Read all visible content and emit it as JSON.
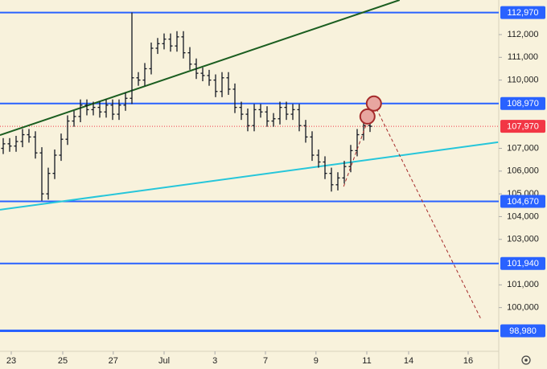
{
  "chart_data": {
    "type": "ohlc",
    "x": [
      0,
      1,
      2,
      3,
      4,
      5,
      6,
      7,
      8,
      9,
      10,
      11,
      12,
      13,
      14,
      15,
      16,
      17,
      18,
      19,
      20,
      21,
      22,
      23,
      24,
      25,
      26,
      27,
      28,
      29,
      30,
      31,
      32,
      33,
      34,
      35,
      36,
      37,
      38,
      39,
      40,
      41,
      42,
      43,
      44,
      45,
      46,
      47,
      48,
      49,
      50,
      51,
      52,
      53,
      54,
      55,
      56,
      57
    ],
    "open": [
      107000,
      107200,
      107100,
      107300,
      107600,
      107500,
      106800,
      105000,
      105900,
      106700,
      107400,
      108200,
      108400,
      108900,
      108700,
      108800,
      108600,
      108900,
      108500,
      108900,
      109200,
      110100,
      110000,
      110500,
      111400,
      111600,
      111800,
      111500,
      111900,
      111200,
      110700,
      110300,
      110200,
      110000,
      109500,
      110100,
      109600,
      108800,
      108500,
      108000,
      108700,
      108600,
      108200,
      108300,
      108800,
      108500,
      108700,
      108000,
      107500,
      106700,
      106400,
      105900,
      105400,
      105700,
      106200,
      106900,
      107600,
      108000
    ],
    "high": [
      107450,
      107450,
      107550,
      107850,
      107850,
      107750,
      107050,
      106150,
      106950,
      107650,
      108450,
      108650,
      109150,
      109150,
      109050,
      109050,
      109150,
      109150,
      109150,
      109450,
      112970,
      110350,
      110750,
      111650,
      111850,
      112050,
      112050,
      112150,
      112150,
      111450,
      110950,
      110550,
      110450,
      110250,
      110350,
      110350,
      109850,
      109050,
      108750,
      108950,
      108950,
      108850,
      108550,
      109050,
      109050,
      108950,
      108950,
      108250,
      107750,
      106950,
      106650,
      106150,
      105950,
      106450,
      107150,
      107850,
      108250,
      108250
    ],
    "low": [
      106750,
      106850,
      106850,
      107050,
      107250,
      106550,
      104700,
      104750,
      105650,
      106450,
      107150,
      107950,
      108150,
      108450,
      108450,
      108350,
      108350,
      108250,
      108250,
      108650,
      108950,
      109750,
      109750,
      110250,
      111150,
      111350,
      111250,
      111250,
      110950,
      110450,
      110050,
      109950,
      109750,
      109250,
      109250,
      109350,
      108550,
      108250,
      107750,
      107750,
      108350,
      107950,
      107950,
      108050,
      108250,
      108250,
      107750,
      107250,
      106450,
      106150,
      105650,
      105100,
      105150,
      105450,
      105950,
      106650,
      107350,
      107720
    ],
    "close": [
      107200,
      107100,
      107300,
      107600,
      107500,
      106800,
      105000,
      105900,
      106700,
      107400,
      108200,
      108400,
      108900,
      108700,
      108800,
      108600,
      108900,
      108500,
      108900,
      109200,
      110100,
      110000,
      110500,
      111400,
      111600,
      111800,
      111500,
      111900,
      111200,
      110700,
      110300,
      110200,
      110000,
      109500,
      110100,
      109600,
      108800,
      108500,
      108000,
      108700,
      108600,
      108200,
      108300,
      108800,
      108500,
      108700,
      108000,
      107500,
      106700,
      106400,
      105900,
      105400,
      105700,
      106200,
      106900,
      107600,
      108000,
      107970
    ],
    "color": "#131722",
    "xlim": [
      0,
      77.5
    ],
    "xticks": [
      {
        "value": 1.75,
        "label": "23"
      },
      {
        "value": 9.75,
        "label": "25"
      },
      {
        "value": 17.6,
        "label": "27"
      },
      {
        "value": 25.5,
        "label": "Jul"
      },
      {
        "value": 33.4,
        "label": "3"
      },
      {
        "value": 41.25,
        "label": "7"
      },
      {
        "value": 49.1,
        "label": "9"
      },
      {
        "value": 57,
        "label": "11"
      },
      {
        "value": 63.5,
        "label": "14"
      },
      {
        "value": 72.75,
        "label": "16"
      }
    ],
    "ylim": [
      98150,
      113520
    ],
    "yticks": [
      {
        "value": 100000,
        "label": "100,000"
      },
      {
        "value": 101000,
        "label": "101,000"
      },
      {
        "value": 103000,
        "label": "103,000"
      },
      {
        "value": 104000,
        "label": "104,000"
      },
      {
        "value": 105000,
        "label": "105,000"
      },
      {
        "value": 106000,
        "label": "106,000"
      },
      {
        "value": 107000,
        "label": "107,000"
      },
      {
        "value": 110000,
        "label": "110,000"
      },
      {
        "value": 111000,
        "label": "111,000"
      },
      {
        "value": 112000,
        "label": "112,000"
      }
    ],
    "levels": [
      {
        "value": 112970,
        "label": "112,970"
      },
      {
        "value": 108970,
        "label": "108,970"
      },
      {
        "value": 104670,
        "label": "104,670"
      },
      {
        "value": 101940,
        "label": "101,940"
      },
      {
        "value": 98980,
        "label": "98,980"
      }
    ],
    "level_color": "#2962ff",
    "last_price": {
      "value": 107970,
      "label": "107,970"
    },
    "last_price_color": "#f23645",
    "trendlines": [
      {
        "color": "#1b5e20",
        "points": [
          [
            0,
            107580
          ],
          [
            62.1,
            113520
          ]
        ]
      },
      {
        "color": "#26c6da",
        "points": [
          [
            0,
            104300
          ],
          [
            77.4,
            107270
          ]
        ]
      }
    ],
    "projection": {
      "color": "#a52a2a",
      "points": [
        [
          53.4,
          105320
        ],
        [
          58.1,
          108970
        ],
        [
          74.75,
          99490
        ]
      ]
    },
    "markers": {
      "color": "#a52a2a",
      "points": [
        [
          58.1,
          108970
        ],
        [
          57.1,
          108400
        ]
      ]
    }
  }
}
